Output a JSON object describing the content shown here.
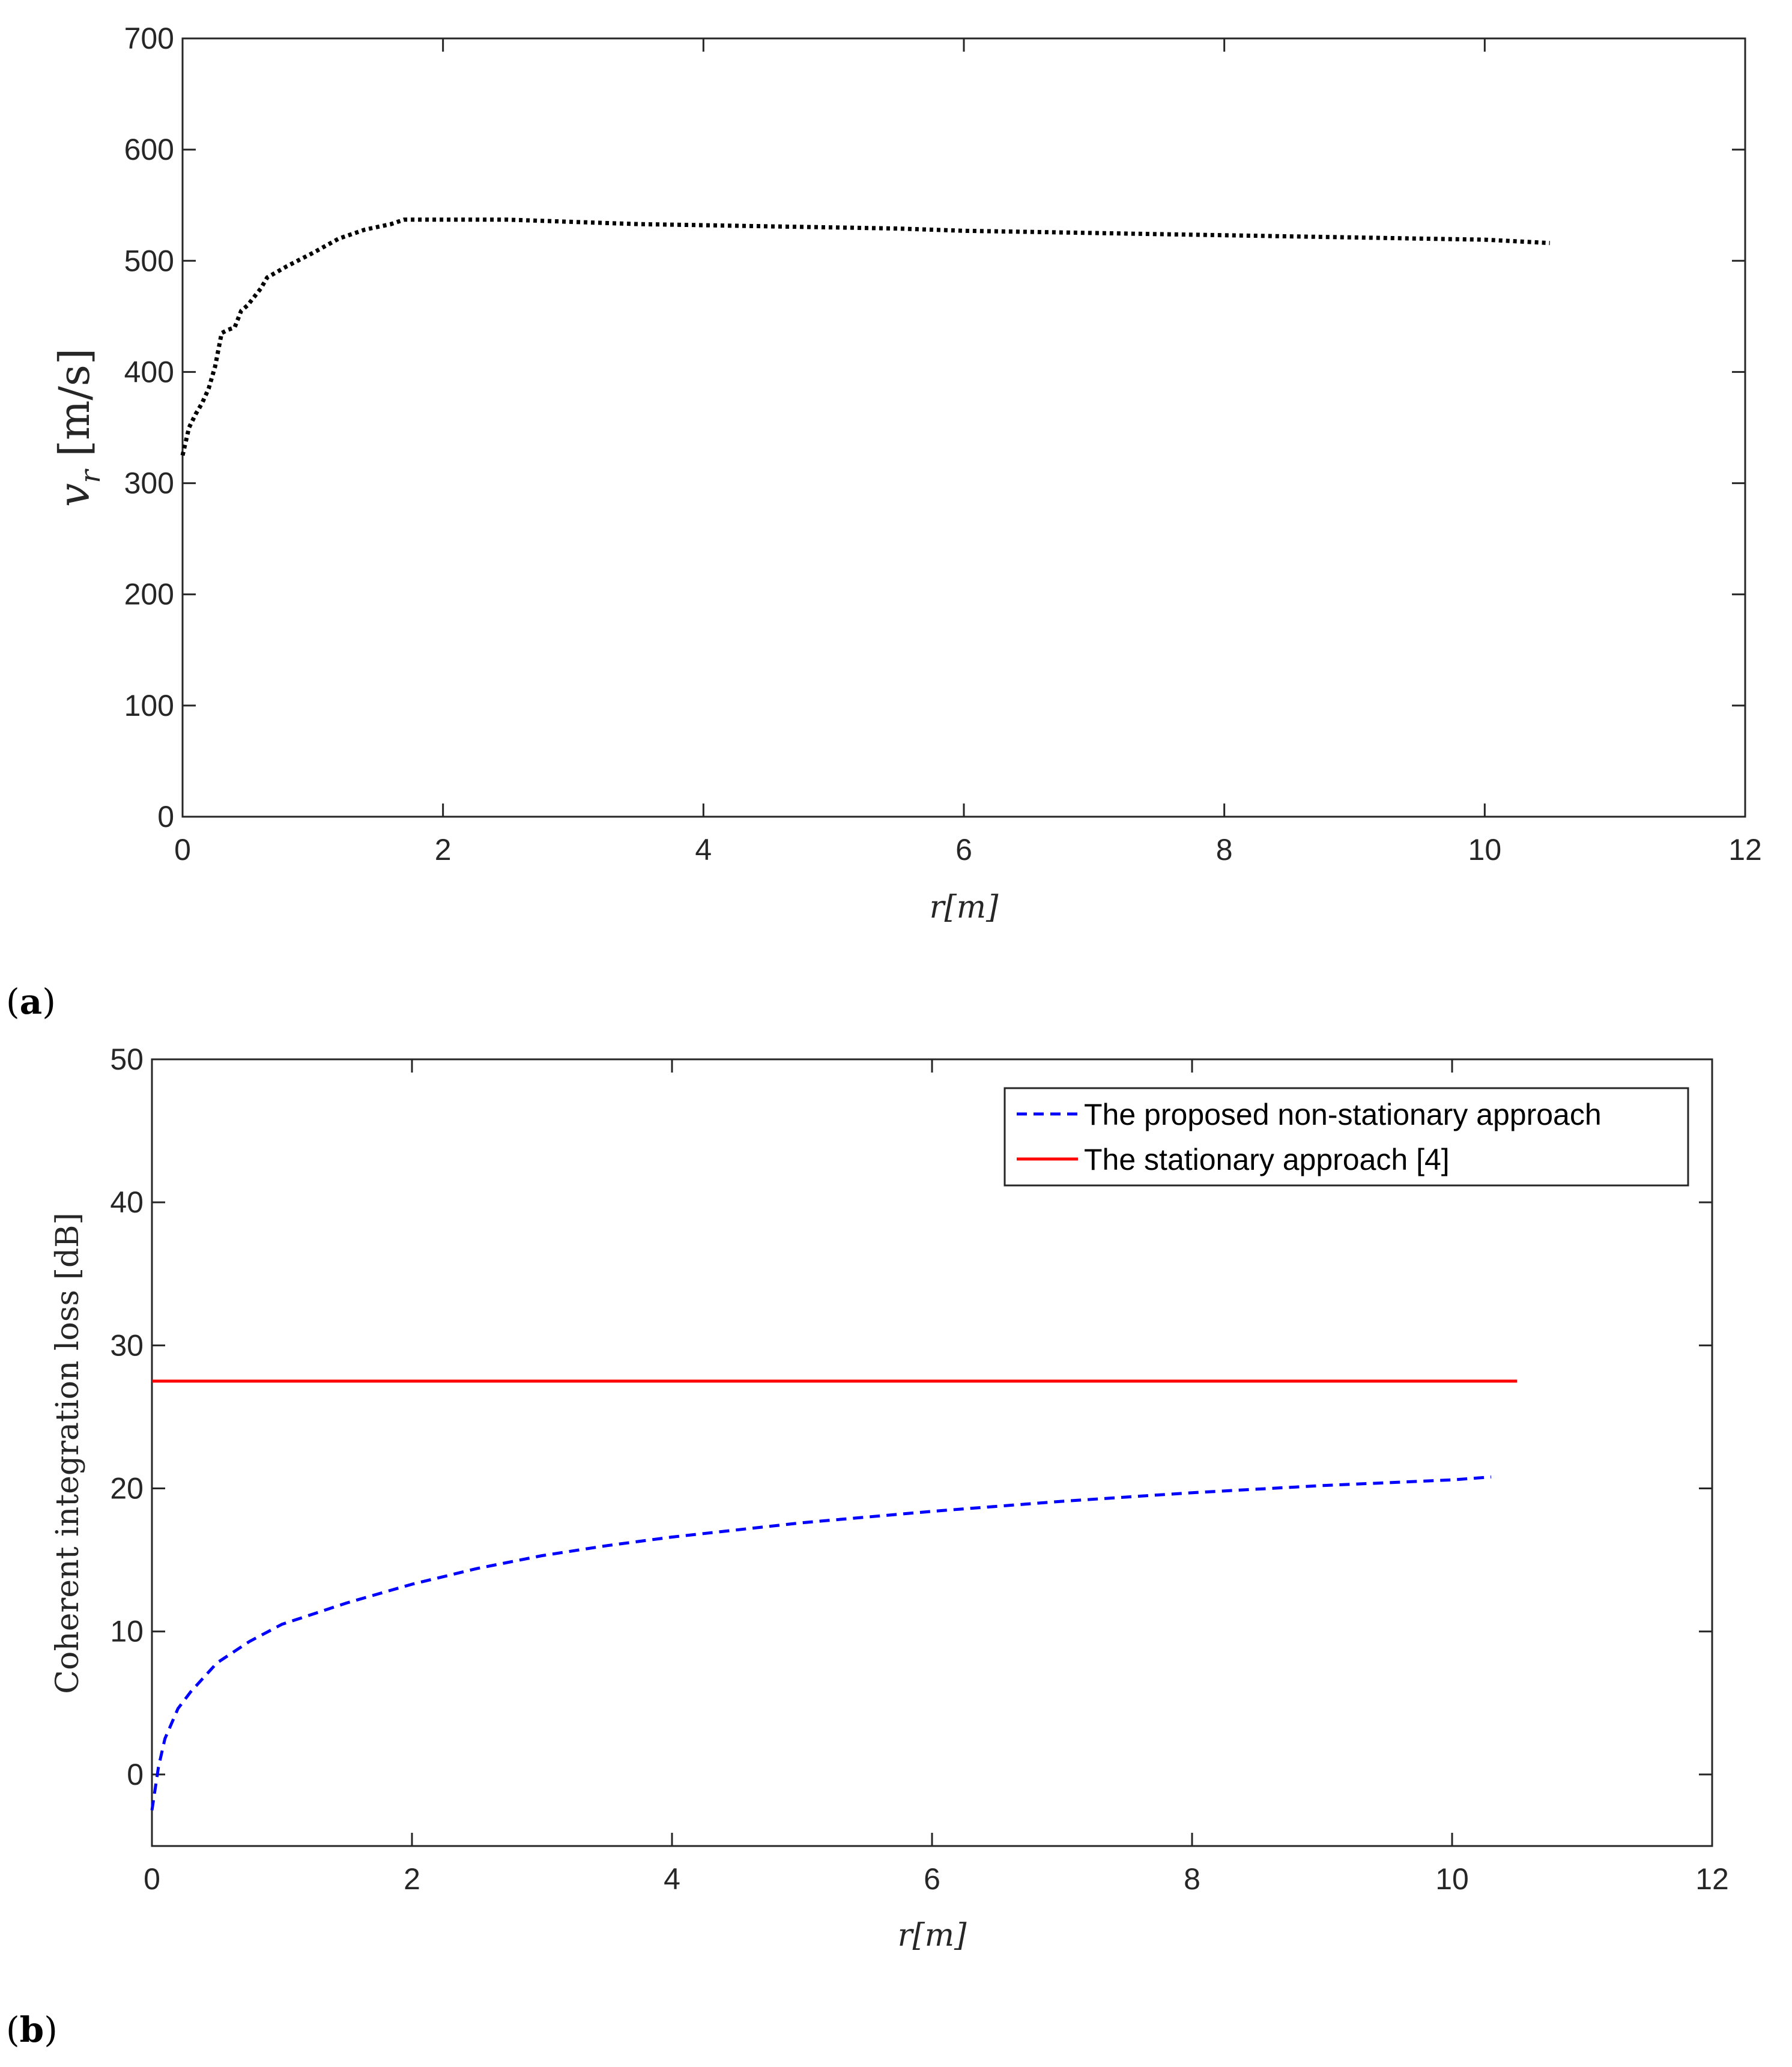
{
  "colors": {
    "axis": "#262626",
    "series_a": "#000000",
    "series_nonstationary": "#0000ff",
    "series_stationary": "#ff0000"
  },
  "panels": {
    "a": {
      "open": "(",
      "letter": "a",
      "close": ")"
    },
    "b": {
      "open": "(",
      "letter": "b",
      "close": ")"
    }
  },
  "chart_data": [
    {
      "id": "a",
      "type": "line",
      "title": "",
      "xlabel": "r[m]",
      "ylabel": "v_r [m/s]",
      "ylabel_main": "v",
      "ylabel_sub": "r",
      "ylabel_units": " [m/s]",
      "xlim": [
        0,
        12
      ],
      "ylim": [
        0,
        700
      ],
      "xticks": [
        0,
        2,
        4,
        6,
        8,
        10,
        12
      ],
      "yticks": [
        0,
        100,
        200,
        300,
        400,
        500,
        600,
        700
      ],
      "grid": false,
      "legend": null,
      "series": [
        {
          "name": "v_r",
          "style": "dotted",
          "color": "#000000",
          "x": [
            0.0,
            0.05,
            0.1,
            0.15,
            0.2,
            0.25,
            0.3,
            0.35,
            0.4,
            0.45,
            0.5,
            0.6,
            0.65,
            0.8,
            1.0,
            1.2,
            1.4,
            1.6,
            1.7,
            2.0,
            2.5,
            3.0,
            3.5,
            4.0,
            4.5,
            5.0,
            5.5,
            6.0,
            6.5,
            7.0,
            7.5,
            8.0,
            8.5,
            9.0,
            9.5,
            10.0,
            10.5
          ],
          "y": [
            325,
            350,
            362,
            372,
            385,
            405,
            435,
            438,
            440,
            455,
            460,
            475,
            485,
            495,
            507,
            520,
            528,
            533,
            537,
            537,
            537,
            535,
            533,
            532,
            531,
            530,
            529,
            527,
            526,
            525,
            524,
            523,
            522,
            521,
            520,
            519,
            516
          ]
        }
      ]
    },
    {
      "id": "b",
      "type": "line",
      "title": "",
      "xlabel": "r[m]",
      "ylabel": "Coherent integration loss [dB]",
      "xlim": [
        0,
        12
      ],
      "ylim": [
        -5,
        50
      ],
      "xticks": [
        0,
        2,
        4,
        6,
        8,
        10,
        12
      ],
      "yticks": [
        0,
        10,
        20,
        30,
        40,
        50
      ],
      "grid": false,
      "legend": "top-right",
      "series": [
        {
          "name": "The proposed non-stationary approach",
          "style": "dashed",
          "color": "#0000ff",
          "x": [
            0.0,
            0.05,
            0.1,
            0.2,
            0.3,
            0.5,
            0.75,
            1.0,
            1.5,
            2.0,
            2.5,
            3.0,
            3.5,
            4.0,
            5.0,
            6.0,
            7.0,
            8.0,
            9.0,
            10.0,
            10.3
          ],
          "y": [
            -2.5,
            0.5,
            2.5,
            4.6,
            5.8,
            7.8,
            9.3,
            10.5,
            12.0,
            13.3,
            14.4,
            15.3,
            16.0,
            16.6,
            17.6,
            18.4,
            19.1,
            19.7,
            20.2,
            20.6,
            20.8
          ]
        },
        {
          "name": "The stationary approach [4]",
          "style": "solid",
          "color": "#ff0000",
          "x": [
            0.0,
            10.5
          ],
          "y": [
            27.5,
            27.5
          ]
        }
      ]
    }
  ]
}
